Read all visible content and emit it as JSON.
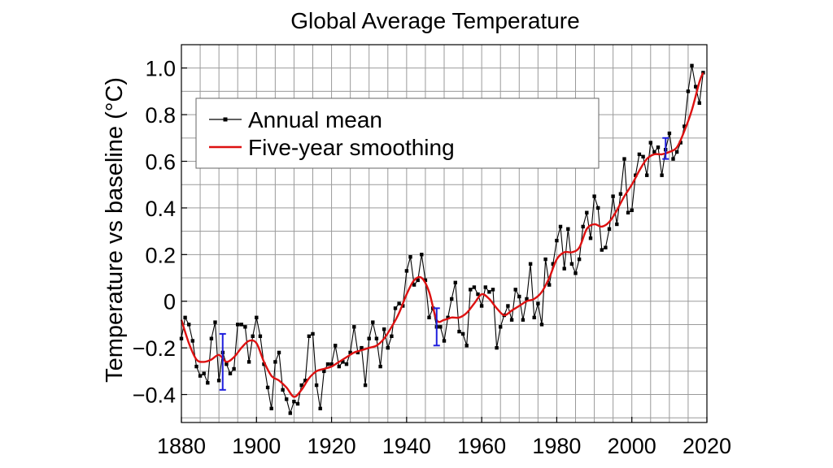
{
  "chart_data": {
    "type": "line",
    "title": "Global Average Temperature",
    "xlabel": "",
    "ylabel": "Temperature vs baseline (°C)",
    "xlim": [
      1880,
      2020
    ],
    "ylim": [
      -0.52,
      1.1
    ],
    "grid": true,
    "x_ticks": [
      1880,
      1900,
      1920,
      1940,
      1960,
      1980,
      2000,
      2020
    ],
    "x_tick_labels": [
      "1880",
      "1900",
      "1920",
      "1940",
      "1960",
      "1980",
      "2000",
      "2020"
    ],
    "y_ticks": [
      -0.4,
      -0.2,
      0,
      0.2,
      0.4,
      0.6,
      0.8,
      1.0
    ],
    "y_tick_labels": [
      "−0.4",
      "−0.2",
      "0",
      "0.2",
      "0.4",
      "0.6",
      "0.8",
      "1.0"
    ],
    "legend": {
      "placement": "top-left",
      "entries": [
        "Annual mean",
        "Five-year smoothing"
      ]
    },
    "series": [
      {
        "name": "Annual mean",
        "color": "#000000",
        "marker": "square",
        "x": [
          1880,
          1881,
          1882,
          1883,
          1884,
          1885,
          1886,
          1887,
          1888,
          1889,
          1890,
          1891,
          1892,
          1893,
          1894,
          1895,
          1896,
          1897,
          1898,
          1899,
          1900,
          1901,
          1902,
          1903,
          1904,
          1905,
          1906,
          1907,
          1908,
          1909,
          1910,
          1911,
          1912,
          1913,
          1914,
          1915,
          1916,
          1917,
          1918,
          1919,
          1920,
          1921,
          1922,
          1923,
          1924,
          1925,
          1926,
          1927,
          1928,
          1929,
          1930,
          1931,
          1932,
          1933,
          1934,
          1935,
          1936,
          1937,
          1938,
          1939,
          1940,
          1941,
          1942,
          1943,
          1944,
          1945,
          1946,
          1947,
          1948,
          1949,
          1950,
          1951,
          1952,
          1953,
          1954,
          1955,
          1956,
          1957,
          1958,
          1959,
          1960,
          1961,
          1962,
          1963,
          1964,
          1965,
          1966,
          1967,
          1968,
          1969,
          1970,
          1971,
          1972,
          1973,
          1974,
          1975,
          1976,
          1977,
          1978,
          1979,
          1980,
          1981,
          1982,
          1983,
          1984,
          1985,
          1986,
          1987,
          1988,
          1989,
          1990,
          1991,
          1992,
          1993,
          1994,
          1995,
          1996,
          1997,
          1998,
          1999,
          2000,
          2001,
          2002,
          2003,
          2004,
          2005,
          2006,
          2007,
          2008,
          2009,
          2010,
          2011,
          2012,
          2013,
          2014,
          2015,
          2016,
          2017,
          2018,
          2019
        ],
        "values": [
          -0.16,
          -0.07,
          -0.1,
          -0.17,
          -0.28,
          -0.32,
          -0.31,
          -0.35,
          -0.16,
          -0.09,
          -0.34,
          -0.22,
          -0.27,
          -0.31,
          -0.29,
          -0.1,
          -0.1,
          -0.11,
          -0.26,
          -0.15,
          -0.07,
          -0.15,
          -0.27,
          -0.37,
          -0.46,
          -0.26,
          -0.22,
          -0.38,
          -0.42,
          -0.48,
          -0.43,
          -0.44,
          -0.36,
          -0.34,
          -0.15,
          -0.14,
          -0.36,
          -0.46,
          -0.3,
          -0.27,
          -0.27,
          -0.19,
          -0.28,
          -0.26,
          -0.27,
          -0.22,
          -0.11,
          -0.22,
          -0.2,
          -0.36,
          -0.16,
          -0.09,
          -0.16,
          -0.28,
          -0.12,
          -0.2,
          -0.15,
          -0.03,
          -0.01,
          -0.02,
          0.13,
          0.19,
          0.07,
          0.09,
          0.2,
          0.09,
          -0.07,
          -0.03,
          -0.11,
          -0.11,
          -0.17,
          -0.07,
          0.01,
          0.08,
          -0.13,
          -0.14,
          -0.19,
          0.05,
          0.06,
          0.03,
          -0.02,
          0.06,
          0.04,
          0.05,
          -0.2,
          -0.11,
          -0.06,
          -0.02,
          -0.08,
          0.05,
          0.02,
          -0.08,
          0.01,
          0.16,
          -0.07,
          -0.01,
          -0.1,
          0.18,
          0.07,
          0.16,
          0.26,
          0.32,
          0.14,
          0.31,
          0.16,
          0.12,
          0.18,
          0.32,
          0.38,
          0.27,
          0.45,
          0.4,
          0.22,
          0.23,
          0.31,
          0.45,
          0.33,
          0.46,
          0.61,
          0.38,
          0.39,
          0.54,
          0.63,
          0.62,
          0.54,
          0.68,
          0.64,
          0.66,
          0.54,
          0.65,
          0.72,
          0.61,
          0.64,
          0.68,
          0.75,
          0.9,
          1.01,
          0.92,
          0.85,
          0.98
        ]
      },
      {
        "name": "Five-year smoothing",
        "color": "#dd1111",
        "x": [
          1880,
          1882,
          1884,
          1886,
          1888,
          1890,
          1892,
          1894,
          1896,
          1898,
          1900,
          1902,
          1904,
          1906,
          1908,
          1910,
          1912,
          1914,
          1916,
          1918,
          1920,
          1922,
          1924,
          1926,
          1928,
          1930,
          1932,
          1934,
          1936,
          1938,
          1940,
          1942,
          1944,
          1946,
          1948,
          1950,
          1952,
          1954,
          1956,
          1958,
          1960,
          1962,
          1964,
          1966,
          1968,
          1970,
          1972,
          1974,
          1976,
          1978,
          1980,
          1982,
          1984,
          1986,
          1988,
          1990,
          1992,
          1994,
          1996,
          1998,
          2000,
          2002,
          2004,
          2006,
          2008,
          2010,
          2012,
          2014,
          2016,
          2018,
          2019
        ],
        "values": [
          -0.08,
          -0.18,
          -0.25,
          -0.26,
          -0.25,
          -0.23,
          -0.26,
          -0.24,
          -0.2,
          -0.17,
          -0.18,
          -0.26,
          -0.32,
          -0.34,
          -0.37,
          -0.41,
          -0.38,
          -0.33,
          -0.3,
          -0.29,
          -0.28,
          -0.26,
          -0.24,
          -0.22,
          -0.21,
          -0.2,
          -0.19,
          -0.16,
          -0.11,
          -0.05,
          0.03,
          0.09,
          0.1,
          0.04,
          -0.08,
          -0.08,
          -0.07,
          -0.07,
          -0.05,
          -0.01,
          0.03,
          0.01,
          -0.03,
          -0.06,
          -0.04,
          -0.02,
          0,
          0.01,
          0.04,
          0.1,
          0.18,
          0.21,
          0.21,
          0.23,
          0.31,
          0.33,
          0.32,
          0.34,
          0.39,
          0.45,
          0.5,
          0.56,
          0.61,
          0.63,
          0.63,
          0.64,
          0.66,
          0.73,
          0.82,
          0.94,
          0.98
        ]
      }
    ],
    "error_bars": [
      {
        "x": 1891,
        "low": -0.38,
        "high": -0.14
      },
      {
        "x": 1948,
        "low": -0.19,
        "high": -0.03
      },
      {
        "x": 2009,
        "low": 0.61,
        "high": 0.7
      }
    ],
    "error_bar_color": "#1f1fdd"
  }
}
